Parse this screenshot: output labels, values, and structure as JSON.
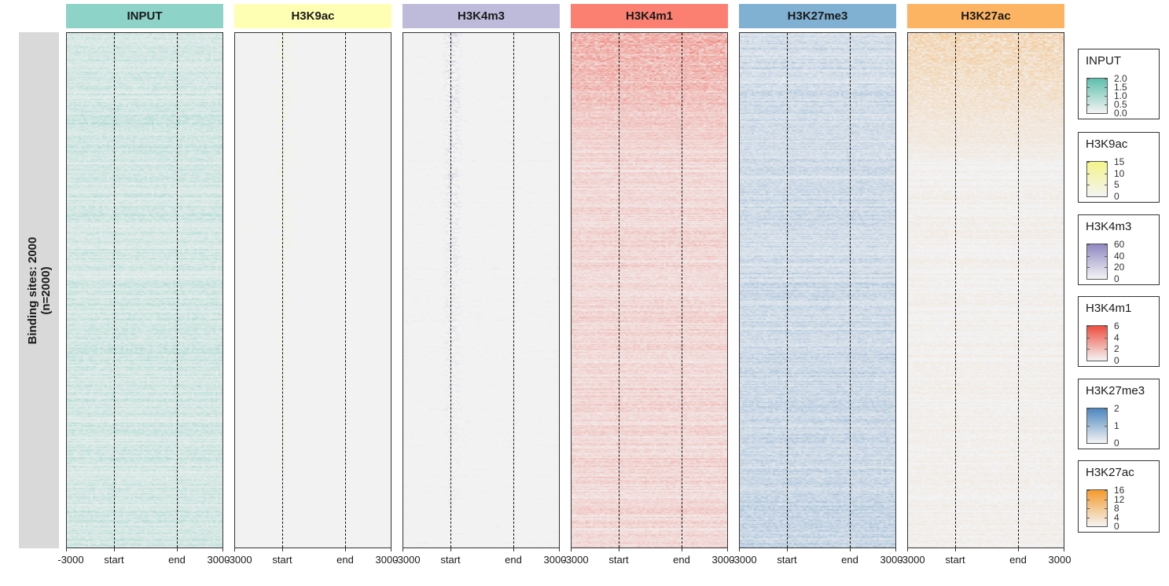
{
  "chart_data": {
    "type": "heatmap",
    "row_strip_label": [
      "Binding sites: 2000",
      "(n=2000)"
    ],
    "x_ticks": [
      "-3000",
      "start",
      "end",
      "3000"
    ],
    "panels": [
      {
        "name": "INPUT",
        "header_color": "#8dd3c7",
        "color": "#5dbfac",
        "background": 0.45,
        "max": 2.0,
        "legend_ticks": [
          "2.0",
          "1.5",
          "1.0",
          "0.5",
          "0.0"
        ]
      },
      {
        "name": "H3K9ac",
        "header_color": "#ffffb3",
        "color": "#f4f48a",
        "background": 0.05,
        "max": 15,
        "legend_ticks": [
          "15",
          "10",
          "5",
          "0"
        ]
      },
      {
        "name": "H3K4m3",
        "header_color": "#bebada",
        "color": "#8f88c2",
        "background": 0.05,
        "max": 60,
        "legend_ticks": [
          "60",
          "40",
          "20",
          "0"
        ]
      },
      {
        "name": "H3K4m1",
        "header_color": "#fb8072",
        "color": "#ee4e3e",
        "background": 0.35,
        "max": 6,
        "legend_ticks": [
          "6",
          "4",
          "2",
          "0"
        ]
      },
      {
        "name": "H3K27me3",
        "header_color": "#80b1d3",
        "color": "#4c86bd",
        "background": 0.4,
        "max": 2,
        "legend_ticks": [
          "2",
          "1",
          "0"
        ]
      },
      {
        "name": "H3K27ac",
        "header_color": "#fdb462",
        "color": "#f59a2c",
        "background": 0.1,
        "max": 16,
        "legend_ticks": [
          "16",
          "12",
          "8",
          "4",
          "0"
        ]
      }
    ]
  }
}
